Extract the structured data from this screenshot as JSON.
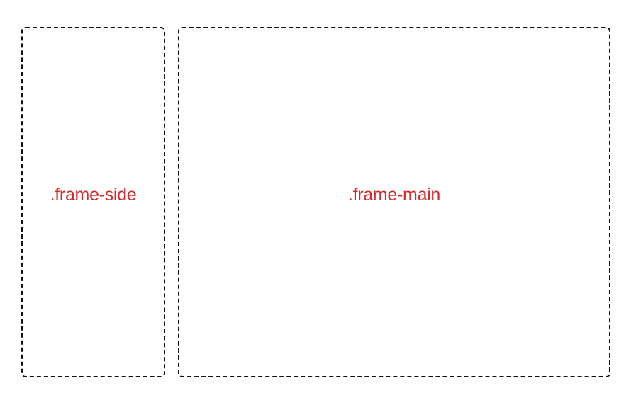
{
  "frames": {
    "side": {
      "label": ".frame-side"
    },
    "main": {
      "label": ".frame-main"
    }
  },
  "colors": {
    "label": "#d22b2b",
    "border": "#111111",
    "background": "#ffffff"
  }
}
